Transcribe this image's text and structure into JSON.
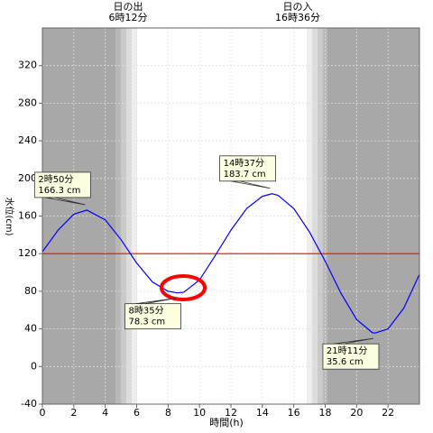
{
  "chart_data": {
    "type": "line",
    "x_label": "時間(h)",
    "y_label": "水位(cm)",
    "xlim": [
      0,
      24
    ],
    "xticks": [
      0,
      2,
      4,
      6,
      8,
      10,
      12,
      14,
      16,
      18,
      20,
      22
    ],
    "ylim": [
      -40,
      360
    ],
    "yticks": [
      -40,
      0,
      40,
      80,
      120,
      160,
      200,
      240,
      280,
      320
    ],
    "grid": true,
    "series": [
      {
        "color": "#0000ff",
        "x": [
          0,
          1,
          2,
          2.833,
          4,
          5,
          6,
          7,
          8,
          8.583,
          9,
          10,
          11,
          12,
          13,
          14,
          14.617,
          15,
          16,
          17,
          18,
          19,
          20,
          21,
          21.183,
          22,
          23,
          24
        ],
        "values": [
          122,
          145,
          162,
          166.3,
          156,
          135,
          110,
          90,
          80,
          78.3,
          79,
          92,
          118,
          145,
          168,
          181,
          183.7,
          182,
          168,
          143,
          112,
          78,
          50,
          36,
          35.6,
          40,
          62,
          98
        ]
      }
    ],
    "reference_line": {
      "value": 120,
      "color": "#ff0000"
    },
    "sun": [
      {
        "title": "日の出",
        "time": "6時12分"
      },
      {
        "title": "日の入",
        "time": "16時36分"
      }
    ],
    "annotations": [
      {
        "time": "2時50分",
        "label": "166.3 cm",
        "x": 2.833,
        "value": 166.3,
        "kind": "high"
      },
      {
        "time": "8時35分",
        "label": "78.3 cm",
        "x": 8.583,
        "value": 78.3,
        "kind": "low"
      },
      {
        "time": "14時37分",
        "label": "183.7 cm",
        "x": 14.617,
        "value": 183.7,
        "kind": "high"
      },
      {
        "time": "21時11分",
        "label": "35.6 cm",
        "x": 21.183,
        "value": 35.6,
        "kind": "low"
      }
    ]
  }
}
